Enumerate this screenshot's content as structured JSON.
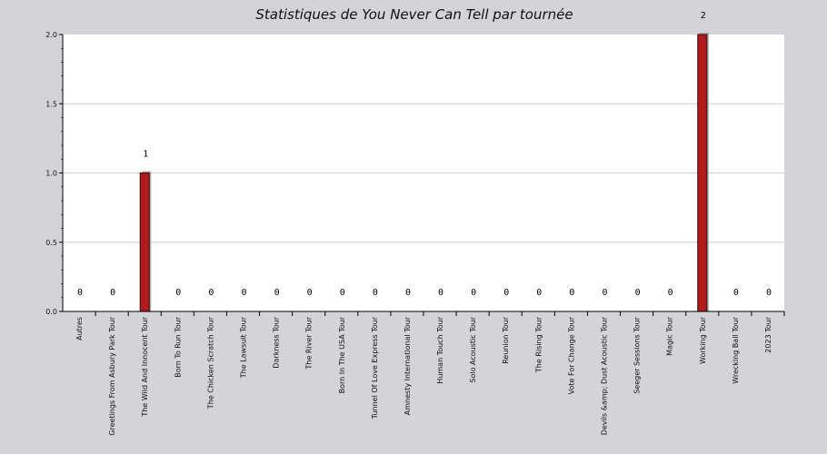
{
  "chart_data": {
    "type": "bar",
    "title": "Statistiques de You Never Can Tell par tournée",
    "xlabel": "",
    "ylabel": "",
    "ylim": [
      0,
      2
    ],
    "yticks": [
      "0.0",
      "0.5",
      "1.0",
      "1.5",
      "2.0"
    ],
    "grid": true,
    "bar_color": "#b01c1c",
    "categories": [
      "Autres",
      "Greetings From Asbury Park Tour",
      "The Wild And Innocent Tour",
      "Born To Run Tour",
      "The Chicken Scratch Tour",
      "The Lawsuit Tour",
      "Darkness Tour",
      "The River Tour",
      "Born In The USA Tour",
      "Tunnel Of Love Express Tour",
      "Amnesty International Tour",
      "Human Touch Tour",
      "Solo Acoustic Tour",
      "Reunion Tour",
      "The Rising Tour",
      "Vote For Change Tour",
      "Devils &amp; Dust Acoustic Tour",
      "Seeger Sessions Tour",
      "Magic Tour",
      "Working Tour",
      "Wrecking Ball Tour",
      "2023 Tour"
    ],
    "values": [
      0,
      0,
      1,
      0,
      0,
      0,
      0,
      0,
      0,
      0,
      0,
      0,
      0,
      0,
      0,
      0,
      0,
      0,
      0,
      2,
      0,
      0
    ],
    "value_labels": [
      "0",
      "0",
      "1",
      "0",
      "0",
      "0",
      "0",
      "0",
      "0",
      "0",
      "0",
      "0",
      "0",
      "0",
      "0",
      "0",
      "0",
      "0",
      "0",
      "2",
      "0",
      "0"
    ]
  }
}
